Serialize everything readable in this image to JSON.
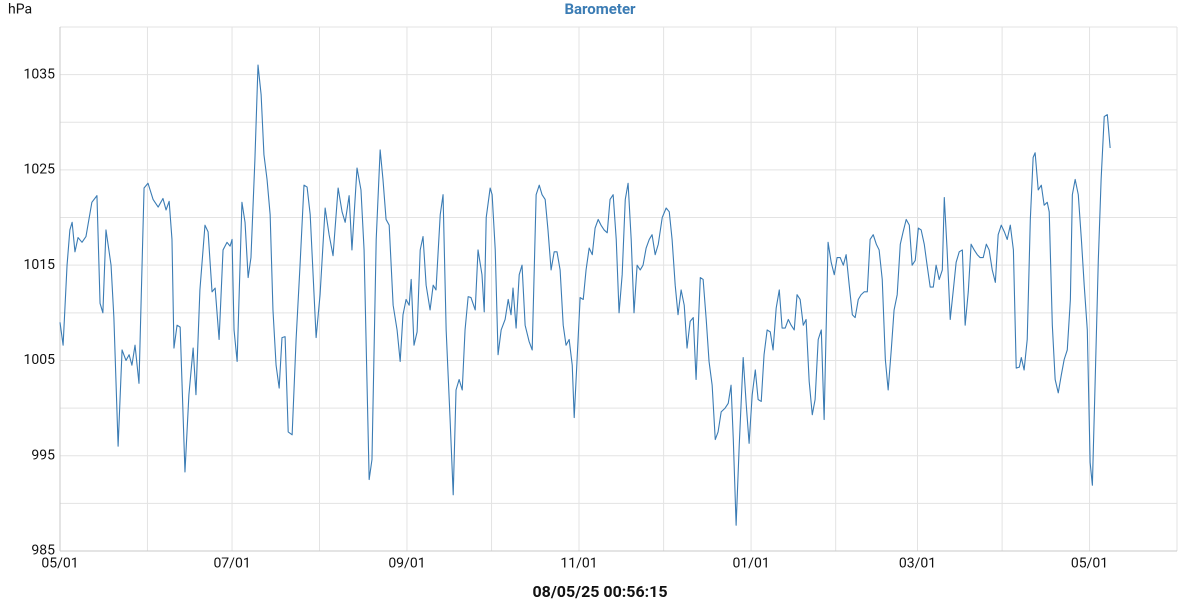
{
  "chart_data": {
    "type": "line",
    "title": "Barometer",
    "y_label": "hPa",
    "footer": "08/05/25 00:56:15",
    "color": "#3b7cb4",
    "grid": true,
    "xlim": [
      0,
      396
    ],
    "xticks": [
      {
        "value": 0,
        "label": "05/01"
      },
      {
        "value": 61,
        "label": "07/01"
      },
      {
        "value": 123,
        "label": "09/01"
      },
      {
        "value": 184,
        "label": "11/01"
      },
      {
        "value": 245,
        "label": "01/01"
      },
      {
        "value": 304,
        "label": "03/01"
      },
      {
        "value": 365,
        "label": "05/01"
      }
    ],
    "x_minor_ticks": [
      31,
      92,
      153,
      214,
      275,
      334,
      396
    ],
    "ylim": [
      985,
      1040
    ],
    "yticks": [
      985,
      995,
      1005,
      1015,
      1025,
      1035
    ],
    "y_minor_ticks": [
      990,
      1000,
      1010,
      1020,
      1030,
      1040
    ],
    "x": [
      0,
      1.1,
      2.5,
      3.5,
      4.3,
      5.3,
      6.4,
      7.8,
      9.2,
      11.3,
      13.1,
      14.2,
      15.2,
      16.3,
      18.1,
      19.1,
      20.6,
      22.0,
      23.4,
      24.5,
      25.5,
      26.6,
      28.0,
      29.8,
      31.2,
      33.0,
      34.8,
      36.5,
      37.6,
      38.7,
      39.7,
      40.4,
      41.5,
      42.6,
      44.3,
      45.7,
      47.2,
      48.2,
      49.6,
      51.4,
      52.5,
      53.9,
      55.0,
      56.4,
      57.8,
      59.2,
      60.3,
      61.0,
      61.7,
      62.8,
      64.5,
      65.6,
      66.7,
      67.7,
      69.1,
      70.2,
      71.3,
      72.3,
      73.4,
      74.5,
      75.5,
      76.6,
      77.7,
      78.7,
      79.8,
      80.9,
      82.3,
      83.7,
      85.1,
      86.5,
      87.6,
      88.7,
      90.8,
      92.2,
      94.0,
      95.4,
      96.8,
      98.6,
      100.0,
      101.1,
      102.5,
      103.5,
      105.3,
      106.7,
      107.8,
      109.6,
      110.6,
      112.1,
      113.5,
      114.5,
      115.6,
      116.7,
      118.1,
      119.5,
      120.6,
      121.6,
      122.7,
      123.8,
      124.5,
      125.5,
      126.6,
      127.7,
      128.7,
      129.8,
      131.2,
      132.3,
      133.3,
      134.8,
      135.8,
      136.9,
      138.3,
      139.4,
      140.4,
      141.5,
      142.6,
      143.6,
      144.7,
      145.7,
      147.2,
      148.2,
      149.6,
      150.4,
      151.1,
      152.5,
      153.2,
      154.3,
      155.3,
      156.4,
      157.8,
      158.9,
      159.9,
      160.6,
      161.7,
      162.8,
      163.8,
      164.9,
      166.3,
      167.4,
      168.8,
      169.9,
      170.9,
      172.0,
      173.0,
      174.1,
      175.2,
      176.2,
      177.3,
      178.4,
      179.4,
      180.5,
      181.6,
      182.3,
      184.4,
      185.5,
      186.5,
      187.6,
      188.7,
      189.7,
      190.8,
      191.8,
      192.9,
      194.0,
      195.0,
      196.1,
      197.2,
      198.2,
      199.3,
      200.4,
      201.4,
      202.5,
      203.5,
      204.6,
      205.7,
      206.7,
      207.8,
      208.9,
      209.9,
      211.0,
      212.1,
      213.5,
      214.9,
      216.0,
      217.0,
      218.1,
      219.1,
      220.2,
      221.3,
      222.3,
      223.4,
      224.5,
      225.5,
      227.0,
      228.0,
      229.1,
      230.1,
      231.2,
      232.3,
      233.3,
      234.4,
      235.8,
      236.9,
      237.9,
      238.7,
      239.7,
      240.8,
      242.2,
      243.3,
      244.3,
      245.4,
      246.5,
      247.5,
      248.6,
      249.6,
      250.7,
      251.8,
      252.8,
      253.9,
      255.0,
      256.0,
      257.1,
      258.2,
      259.2,
      260.3,
      261.3,
      262.4,
      263.5,
      264.5,
      265.6,
      266.7,
      267.7,
      268.8,
      269.9,
      270.9,
      272.3,
      273.4,
      274.5,
      275.5,
      276.6,
      277.7,
      278.7,
      279.8,
      280.9,
      281.9,
      283.0,
      284.0,
      285.1,
      286.2,
      287.2,
      288.3,
      289.4,
      290.4,
      291.5,
      292.6,
      293.6,
      294.7,
      295.7,
      296.8,
      297.9,
      298.9,
      300.0,
      301.1,
      302.1,
      303.2,
      304.3,
      305.3,
      306.4,
      307.4,
      308.5,
      309.6,
      310.6,
      311.7,
      312.8,
      313.5,
      314.5,
      315.6,
      316.7,
      317.7,
      318.8,
      319.9,
      320.9,
      322.0,
      323.0,
      324.1,
      325.2,
      326.2,
      327.3,
      328.4,
      329.4,
      330.5,
      331.6,
      332.6,
      333.7,
      334.8,
      335.8,
      336.9,
      338.0,
      339.0,
      340.1,
      340.8,
      341.8,
      342.9,
      344.0,
      345.0,
      345.7,
      346.8,
      347.9,
      348.9,
      350.0,
      350.7,
      351.8,
      352.8,
      353.9,
      355.0,
      356.0,
      357.1,
      358.2,
      358.9,
      359.9,
      361.0,
      362.1,
      363.1,
      364.2,
      365.2,
      366.0,
      367.0,
      368.1,
      369.1,
      370.2,
      371.3,
      372.3
    ],
    "values": [
      1009,
      1006.6,
      1015,
      1018.7,
      1019.5,
      1016.4,
      1017.9,
      1017.4,
      1018,
      1021.6,
      1022.3,
      1011,
      1010,
      1018.7,
      1015,
      1009.5,
      996,
      1006.1,
      1005,
      1005.6,
      1004.5,
      1006.6,
      1002.6,
      1023.1,
      1023.6,
      1021.9,
      1021.1,
      1022,
      1020.8,
      1021.7,
      1017.7,
      1006.3,
      1008.7,
      1008.5,
      993.3,
      1001.4,
      1006.3,
      1001.4,
      1012.4,
      1019.2,
      1018.5,
      1012.2,
      1012.6,
      1007.2,
      1016.6,
      1017.4,
      1017,
      1017.7,
      1008.2,
      1004.9,
      1021.6,
      1019.5,
      1013.7,
      1015.8,
      1026.1,
      1036,
      1032.9,
      1026.6,
      1024,
      1020.3,
      1010.3,
      1004.5,
      1002.1,
      1007.4,
      1007.5,
      997.5,
      997.2,
      1007.2,
      1015,
      1023.4,
      1023.2,
      1020.3,
      1007.4,
      1011.9,
      1021,
      1018.2,
      1016,
      1023.1,
      1020.6,
      1019.5,
      1022.3,
      1016.6,
      1025.2,
      1022.9,
      1016.6,
      992.5,
      994.6,
      1017.7,
      1027.1,
      1024,
      1019.8,
      1019.2,
      1010.8,
      1008.2,
      1004.9,
      1009.8,
      1011.4,
      1010.8,
      1013.5,
      1006.6,
      1008,
      1016.6,
      1018,
      1012.9,
      1010.3,
      1012.9,
      1012.4,
      1020.3,
      1022.4,
      1008.2,
      998.8,
      990.9,
      1001.9,
      1003,
      1001.9,
      1008.2,
      1011.7,
      1011.6,
      1010.3,
      1016.6,
      1014,
      1010.1,
      1020,
      1023.1,
      1022.4,
      1016.6,
      1005.6,
      1008.2,
      1009.3,
      1011.4,
      1009.8,
      1012.6,
      1008.4,
      1014,
      1015,
      1008.7,
      1007,
      1006.1,
      1022.4,
      1023.4,
      1022.4,
      1021.9,
      1018.7,
      1014.5,
      1016.4,
      1016.4,
      1014.5,
      1008.7,
      1006.6,
      1007.2,
      1004.5,
      999,
      1011.6,
      1011.4,
      1014.5,
      1016.8,
      1016.1,
      1018.9,
      1019.8,
      1019.2,
      1018.7,
      1018.4,
      1021.9,
      1022.4,
      1017.7,
      1010,
      1014,
      1021.9,
      1023.6,
      1017.7,
      1010,
      1015,
      1014.5,
      1015,
      1016.8,
      1017.7,
      1018.2,
      1016.1,
      1017.2,
      1020,
      1021,
      1020.6,
      1017.7,
      1012.9,
      1009.8,
      1012.4,
      1010.8,
      1006.3,
      1009.1,
      1009.5,
      1003,
      1013.7,
      1013.5,
      1009.3,
      1004.9,
      1002.4,
      996.7,
      997.5,
      999.6,
      1000,
      1000.5,
      1002.4,
      996.7,
      987.7,
      996.1,
      1005.3,
      1000.3,
      996.3,
      1001.4,
      1004,
      1000.9,
      1000.7,
      1005.6,
      1008.2,
      1008,
      1006.1,
      1010.5,
      1012.4,
      1008.4,
      1008.4,
      1009.3,
      1008.7,
      1008.2,
      1011.9,
      1011.4,
      1008.7,
      1009.3,
      1002.8,
      999.3,
      1000.9,
      1007.2,
      1008.2,
      998.8,
      1017.4,
      1015.3,
      1014,
      1015.8,
      1015.8,
      1015,
      1016.1,
      1012.9,
      1009.8,
      1009.5,
      1011.4,
      1011.9,
      1012.2,
      1012.2,
      1017.7,
      1018.2,
      1017.2,
      1016.6,
      1013.5,
      1005.1,
      1001.9,
      1006.1,
      1010.3,
      1011.9,
      1017.2,
      1018.5,
      1019.8,
      1019.2,
      1015,
      1015.5,
      1018.9,
      1018.7,
      1017.2,
      1015,
      1012.7,
      1012.7,
      1015,
      1013.5,
      1014.5,
      1022.1,
      1016.6,
      1009.3,
      1012.4,
      1015.3,
      1016.4,
      1016.6,
      1008.7,
      1012.2,
      1017.2,
      1016.6,
      1016.1,
      1015.8,
      1015.8,
      1017.2,
      1016.6,
      1014.5,
      1013.2,
      1018.2,
      1019.2,
      1018.5,
      1017.7,
      1019.2,
      1016.6,
      1004.2,
      1004.3,
      1005.3,
      1004,
      1007.2,
      1019.8,
      1026.3,
      1026.8,
      1022.9,
      1023.4,
      1021.3,
      1021.6,
      1020.6,
      1008.7,
      1003,
      1001.6,
      1003.5,
      1005.1,
      1006.1,
      1011.4,
      1022.4,
      1024,
      1022.4,
      1017.7,
      1012.9,
      1008.2,
      994.3,
      991.9,
      1003,
      1015.5,
      1024,
      1030.6,
      1030.8,
      1027.3
    ]
  }
}
